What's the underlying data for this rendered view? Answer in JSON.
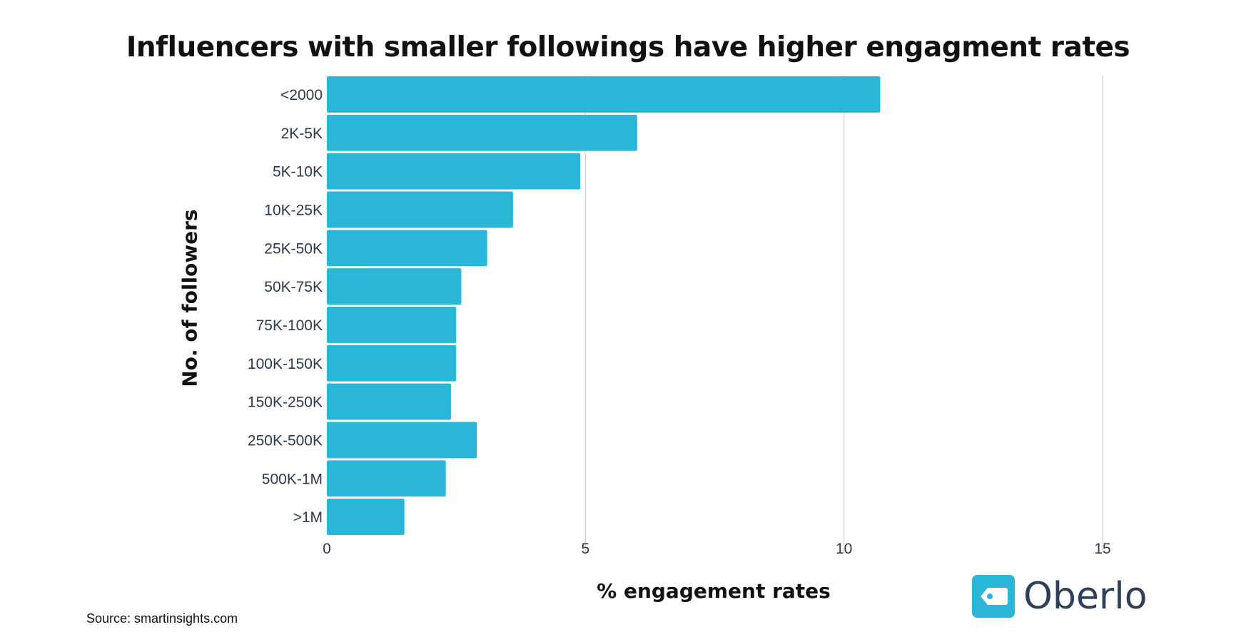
{
  "chart_data": {
    "type": "bar",
    "orientation": "horizontal",
    "title": "Influencers with smaller followings have higher engagment rates",
    "xlabel": "% engagement rates",
    "ylabel": "No. of followers",
    "categories": [
      "<2000",
      "2K-5K",
      "5K-10K",
      "10K-25K",
      "25K-50K",
      "50K-75K",
      "75K-100K",
      "100K-150K",
      "150K-250K",
      "250K-500K",
      "500K-1M",
      ">1M"
    ],
    "values": [
      10.7,
      6.0,
      4.9,
      3.6,
      3.1,
      2.6,
      2.5,
      2.5,
      2.4,
      2.9,
      2.3,
      1.5
    ],
    "xlim": [
      0,
      15
    ],
    "xticks": [
      "0",
      "5",
      "10",
      "15"
    ],
    "grid": true,
    "bar_color": "#29b6d8"
  },
  "source": "Source: smartinsights.com",
  "logo": {
    "text": "Oberlo",
    "icon": "price-tag-icon",
    "color": "#29b6d8",
    "text_color": "#2d4057"
  }
}
